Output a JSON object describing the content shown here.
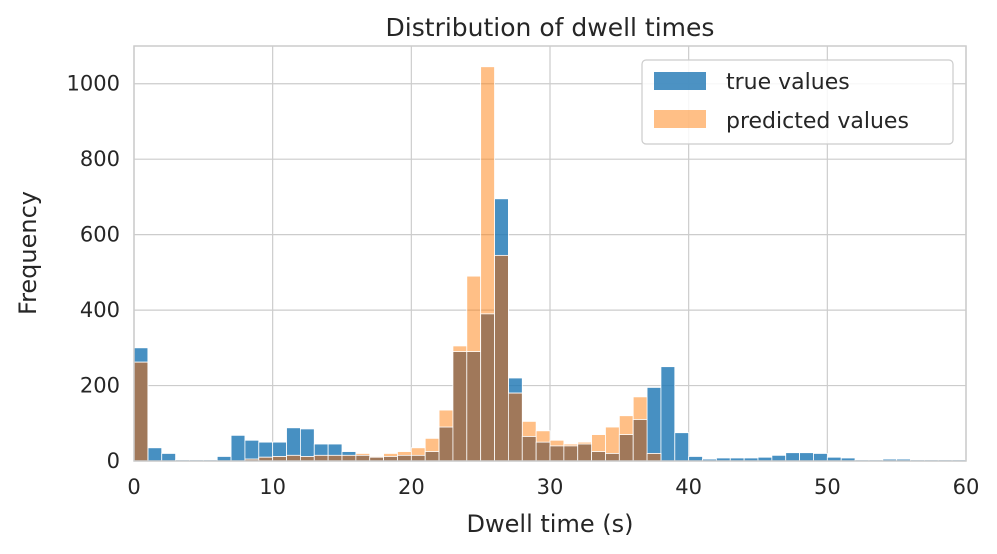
{
  "chart_data": {
    "type": "bar",
    "title": "Distribution of dwell times",
    "xlabel": "Dwell time (s)",
    "ylabel": "Frequency",
    "xlim": [
      0,
      60
    ],
    "ylim": [
      0,
      1100
    ],
    "xticks": [
      "0",
      "10",
      "20",
      "30",
      "40",
      "50",
      "60"
    ],
    "yticks": [
      "0",
      "200",
      "400",
      "600",
      "800",
      "1000"
    ],
    "grid": true,
    "legend_position": "top-right",
    "bin_width": 1,
    "bin_starts": [
      0,
      1,
      2,
      3,
      4,
      5,
      6,
      7,
      8,
      9,
      10,
      11,
      12,
      13,
      14,
      15,
      16,
      17,
      18,
      19,
      20,
      21,
      22,
      23,
      24,
      25,
      26,
      27,
      28,
      29,
      30,
      31,
      32,
      33,
      34,
      35,
      36,
      37,
      38,
      39,
      40,
      41,
      42,
      43,
      44,
      45,
      46,
      47,
      48,
      49,
      50,
      51,
      52,
      53,
      54,
      55,
      56,
      57,
      58,
      59
    ],
    "series": [
      {
        "name": "true values",
        "color": "#1f77b4",
        "values": [
          300,
          35,
          20,
          3,
          3,
          3,
          12,
          68,
          55,
          50,
          50,
          88,
          85,
          45,
          45,
          25,
          15,
          10,
          12,
          15,
          15,
          25,
          90,
          290,
          290,
          390,
          695,
          220,
          65,
          50,
          40,
          40,
          45,
          25,
          20,
          70,
          110,
          195,
          250,
          75,
          12,
          5,
          8,
          8,
          8,
          10,
          15,
          22,
          22,
          20,
          10,
          8,
          3,
          3,
          5,
          5,
          3,
          3,
          3,
          3
        ]
      },
      {
        "name": "predicted values",
        "color": "#ff7f0e",
        "values": [
          262,
          0,
          0,
          0,
          0,
          0,
          0,
          0,
          5,
          10,
          12,
          15,
          12,
          15,
          15,
          15,
          20,
          12,
          20,
          25,
          35,
          60,
          135,
          305,
          490,
          1045,
          545,
          180,
          105,
          80,
          55,
          45,
          50,
          70,
          90,
          120,
          170,
          20,
          0,
          0,
          0,
          0,
          0,
          0,
          0,
          0,
          0,
          0,
          0,
          0,
          0,
          0,
          0,
          0,
          0,
          0,
          0,
          0,
          0,
          0
        ]
      }
    ]
  }
}
